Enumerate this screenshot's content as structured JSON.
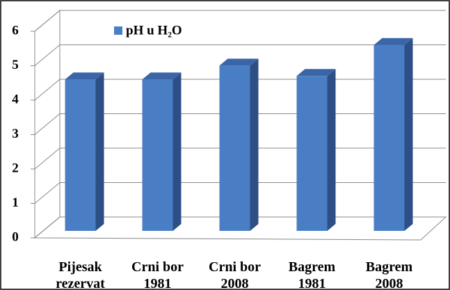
{
  "chart_data": {
    "type": "bar3d",
    "categories": [
      "Pijesak\nrezervat",
      "Crni bor\n1981",
      "Crni bor\n2008",
      "Bagrem\n1981",
      "Bagrem\n2008"
    ],
    "series": [
      {
        "name": "pH u H₂O",
        "color": "#4a7ec4",
        "values": [
          4.4,
          4.4,
          4.8,
          4.5,
          5.4
        ]
      }
    ],
    "ylim": [
      0,
      6
    ],
    "yticks": [
      0,
      1,
      2,
      3,
      4,
      5,
      6
    ],
    "grid": true,
    "legend": "top-left"
  }
}
